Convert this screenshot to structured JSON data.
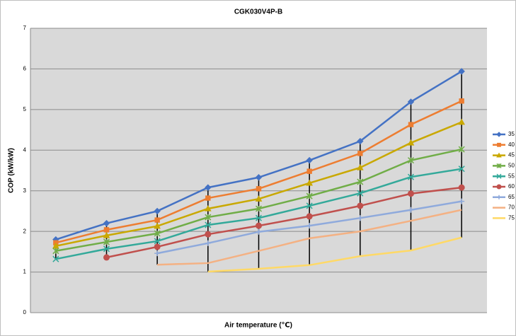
{
  "chart_data": {
    "type": "line",
    "title": "CGK030V4P-B",
    "x_label": "Air temperature  (℃)",
    "y_label": "COP (kW/kW)",
    "categories": [
      null,
      null,
      null,
      null,
      null,
      null,
      null,
      null,
      null
    ],
    "ylim": [
      0,
      7
    ],
    "yticks": [
      0,
      1,
      2,
      3,
      4,
      5,
      6,
      7
    ],
    "grid": true,
    "legend": "right",
    "high_low_lines": true,
    "series": [
      {
        "name": "35",
        "color": "#4472c4",
        "marker": "diamond",
        "values": [
          1.8,
          2.2,
          2.5,
          3.08,
          3.33,
          3.75,
          4.22,
          5.19,
          5.94
        ]
      },
      {
        "name": "40",
        "color": "#ed7d31",
        "marker": "square",
        "values": [
          1.72,
          2.04,
          2.28,
          2.82,
          3.05,
          3.48,
          3.92,
          4.63,
          5.21
        ]
      },
      {
        "name": "45",
        "color": "#c9a800",
        "marker": "triangle",
        "values": [
          1.64,
          1.9,
          2.13,
          2.56,
          2.8,
          3.19,
          3.57,
          4.18,
          4.69
        ]
      },
      {
        "name": "50",
        "color": "#70ad47",
        "marker": "star",
        "values": [
          1.52,
          1.74,
          1.95,
          2.35,
          2.56,
          2.87,
          3.22,
          3.75,
          4.02
        ]
      },
      {
        "name": "55",
        "color": "#33a99a",
        "marker": "x",
        "values": [
          1.32,
          1.57,
          1.76,
          2.16,
          2.33,
          2.63,
          2.94,
          3.34,
          3.54
        ]
      },
      {
        "name": "60",
        "color": "#c0504d",
        "marker": "circle",
        "values": [
          null,
          1.36,
          1.62,
          1.93,
          2.14,
          2.37,
          2.63,
          2.93,
          3.08
        ]
      },
      {
        "name": "65",
        "color": "#8faadc",
        "marker": "plus",
        "values": [
          null,
          null,
          1.46,
          1.71,
          1.99,
          2.14,
          2.33,
          2.53,
          2.74
        ]
      },
      {
        "name": "70",
        "color": "#f4b183",
        "marker": "none",
        "values": [
          null,
          null,
          1.18,
          1.22,
          1.52,
          1.83,
          2.0,
          2.26,
          2.53
        ]
      },
      {
        "name": "75",
        "color": "#ffd966",
        "marker": "none",
        "values": [
          null,
          null,
          null,
          1.01,
          1.08,
          1.17,
          1.39,
          1.53,
          1.85
        ]
      }
    ]
  }
}
